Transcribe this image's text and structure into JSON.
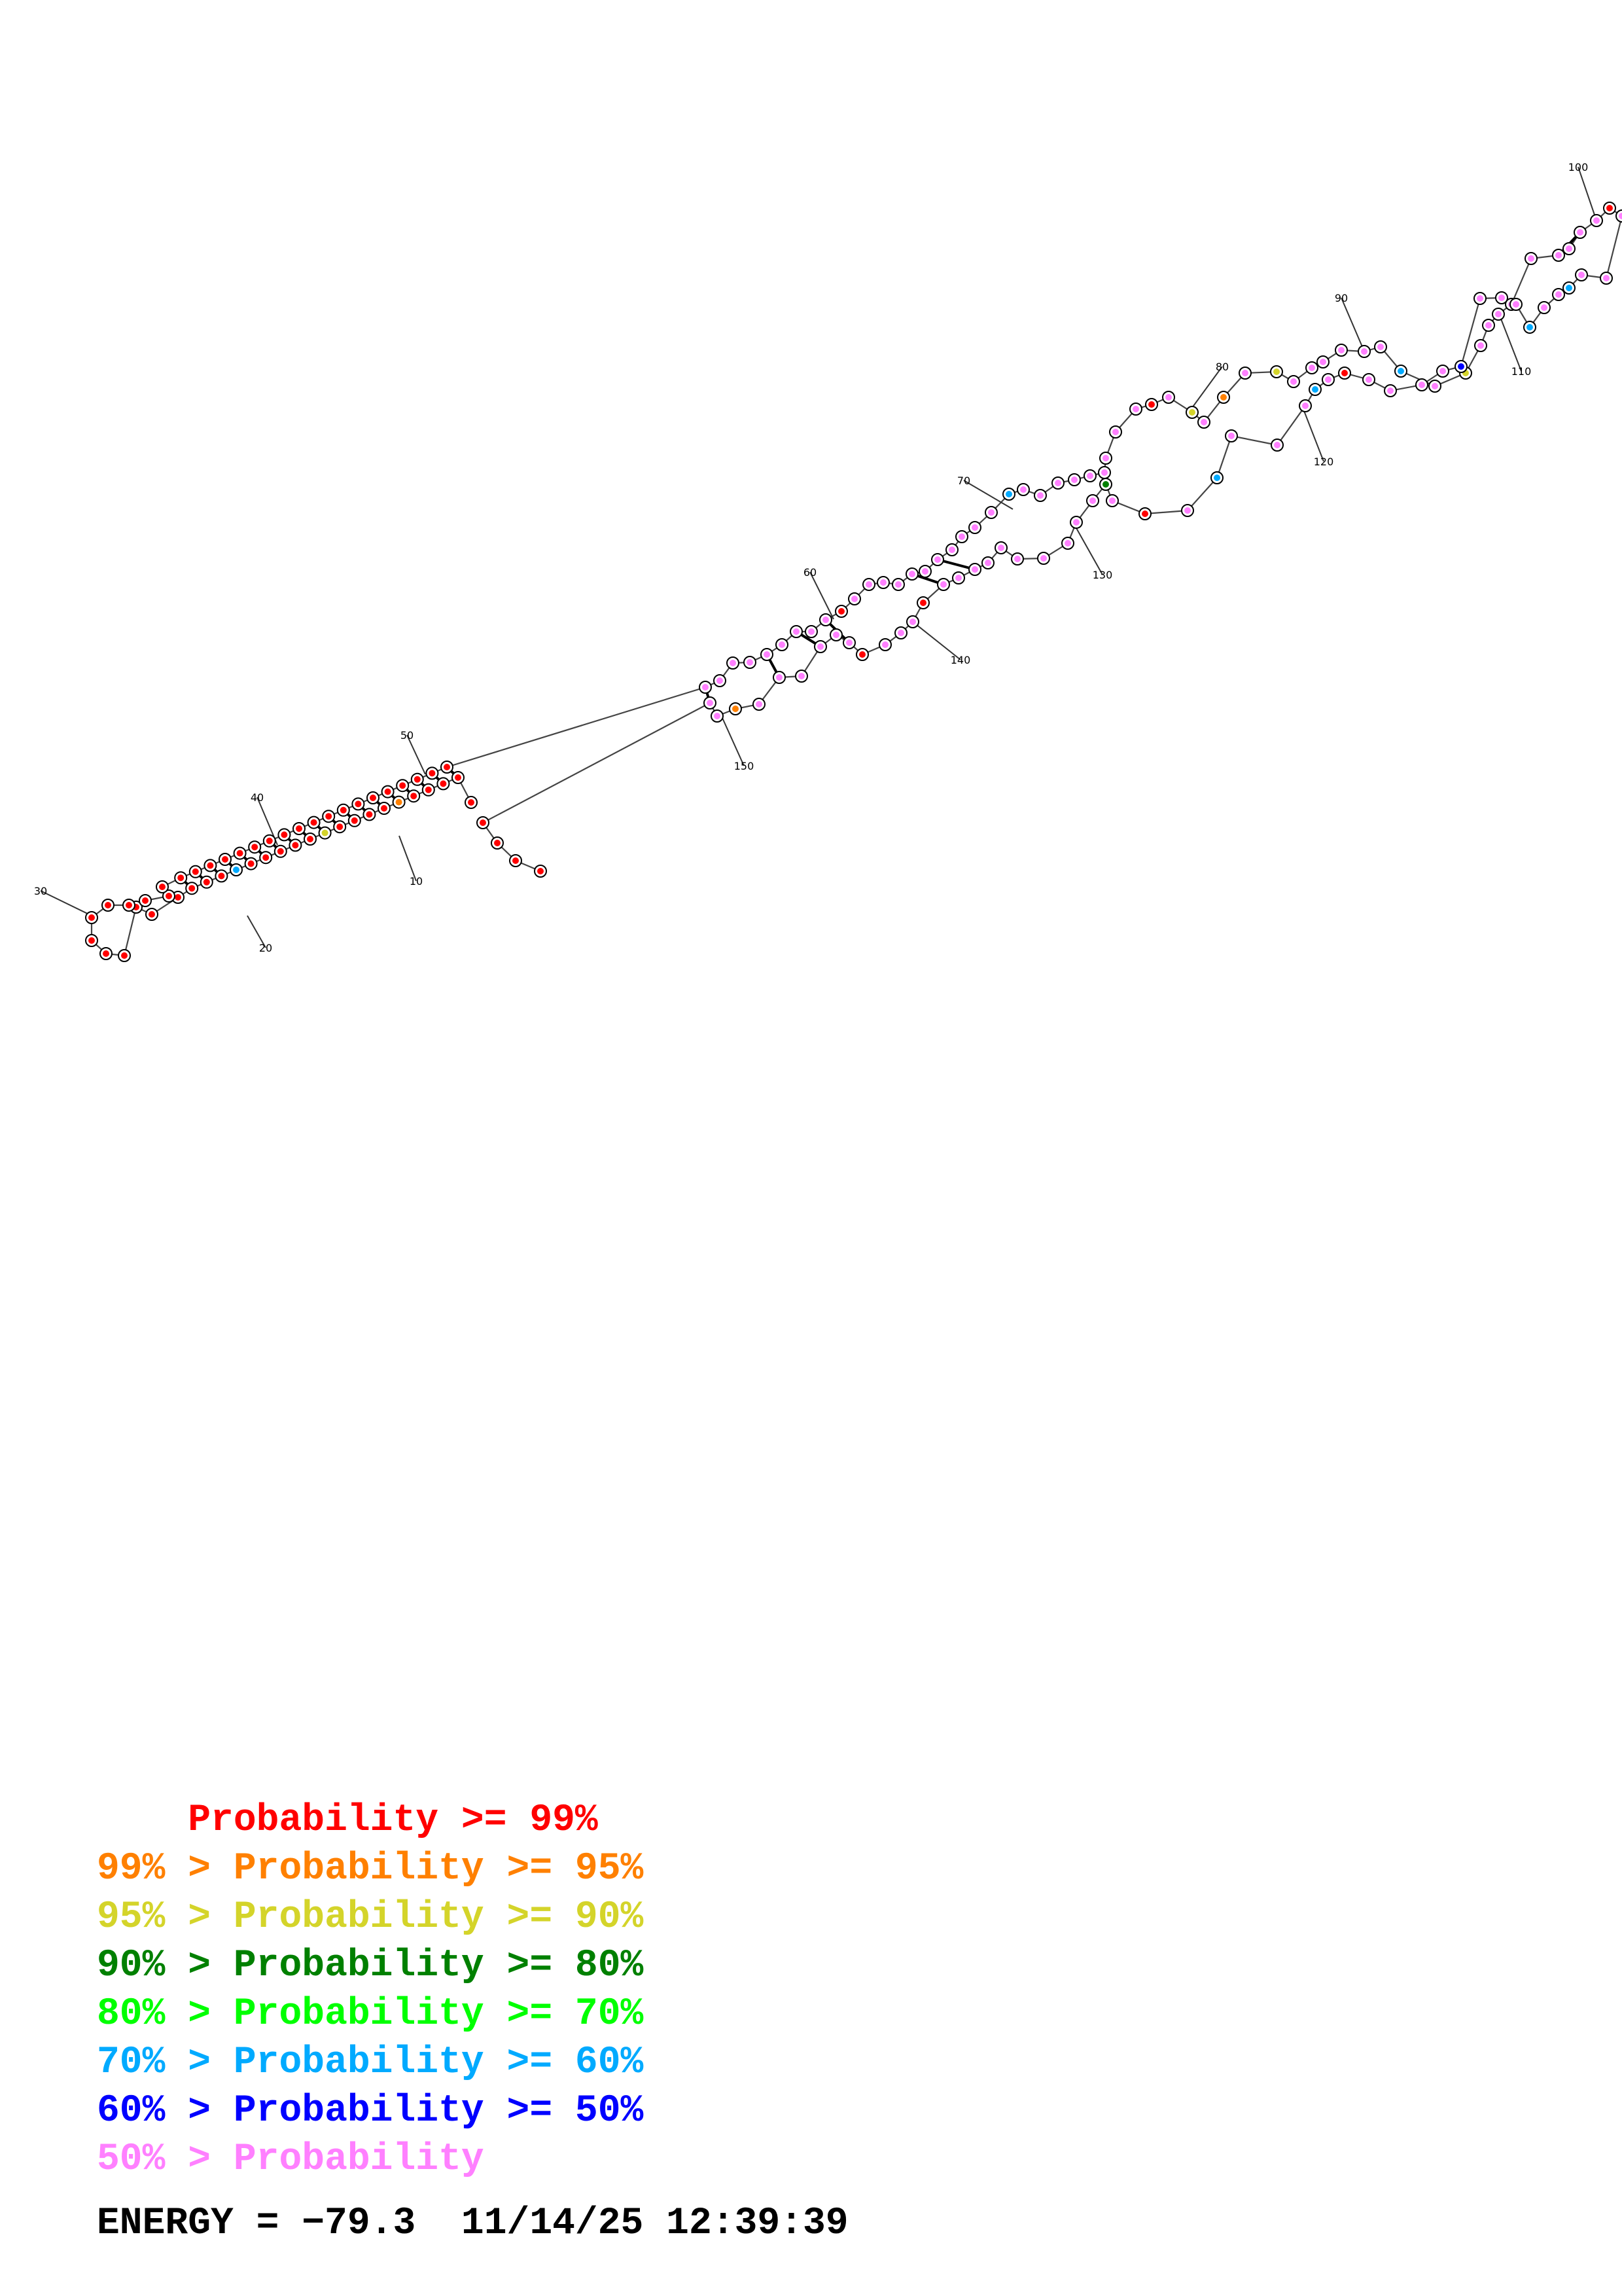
{
  "diagram": {
    "type": "rna-secondary-structure",
    "nucleotide_count": 158,
    "position_labels": [
      "10",
      "20",
      "30",
      "40",
      "50",
      "60",
      "70",
      "80",
      "90",
      "100",
      "110",
      "120",
      "130",
      "140",
      "150"
    ],
    "helix_1_pairs": [
      [
        2,
        51
      ],
      [
        3,
        50
      ],
      [
        4,
        49
      ],
      [
        5,
        48
      ],
      [
        6,
        47
      ],
      [
        7,
        46
      ],
      [
        8,
        45
      ],
      [
        9,
        44
      ],
      [
        10,
        43
      ],
      [
        11,
        42
      ],
      [
        12,
        41
      ],
      [
        13,
        40
      ],
      [
        14,
        39
      ],
      [
        15,
        38
      ],
      [
        16,
        37
      ],
      [
        17,
        36
      ],
      [
        18,
        35
      ],
      [
        19,
        34
      ],
      [
        20,
        33
      ]
    ],
    "probability_colors": {
      "p99": "#ff0000",
      "p95": "#ff8000",
      "p90": "#d4d42a",
      "p80": "#008000",
      "p70": "#00ff00",
      "p60": "#00aaff",
      "p50": "#0000ff",
      "low": "#ff80ff"
    }
  },
  "legend": {
    "rows": [
      {
        "prefix": "    ",
        "text": "Probability >= 99%",
        "color": "#ff0000"
      },
      {
        "prefix": "99% > ",
        "text": "Probability >= 95%",
        "color": "#ff8000"
      },
      {
        "prefix": "95% > ",
        "text": "Probability >= 90%",
        "color": "#d4d42a"
      },
      {
        "prefix": "90% > ",
        "text": "Probability >= 80%",
        "color": "#008000"
      },
      {
        "prefix": "80% > ",
        "text": "Probability >= 70%",
        "color": "#00ff00"
      },
      {
        "prefix": "70% > ",
        "text": "Probability >= 60%",
        "color": "#00aaff"
      },
      {
        "prefix": "60% > ",
        "text": "Probability >= 50%",
        "color": "#0000ff"
      },
      {
        "prefix": "50% > ",
        "text": "Probability",
        "color": "#ff80ff"
      }
    ]
  },
  "footer": {
    "energy_label": "ENERGY = −79.3",
    "timestamp": "11/14/25 12:39:39"
  }
}
